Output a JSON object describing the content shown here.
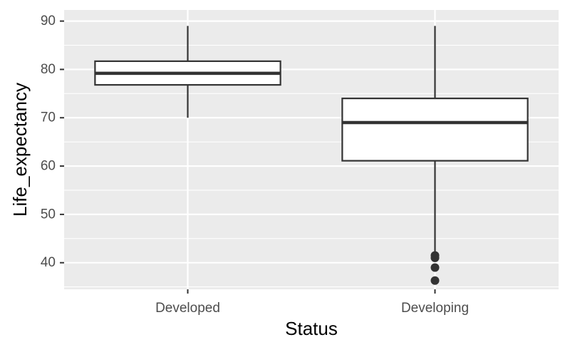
{
  "chart_data": {
    "type": "box",
    "xlabel": "Status",
    "ylabel": "Life_expectancy",
    "categories": [
      "Developed",
      "Developing"
    ],
    "ylim": [
      34.5,
      92.3
    ],
    "yticks": [
      40,
      50,
      60,
      70,
      80,
      90
    ],
    "grid": true,
    "boxes": [
      {
        "category": "Developed",
        "whisker_low": 70.0,
        "q1": 76.8,
        "median": 79.2,
        "q3": 81.7,
        "whisker_high": 89.0,
        "outliers": []
      },
      {
        "category": "Developing",
        "whisker_low": 42.0,
        "q1": 61.1,
        "median": 69.0,
        "q3": 74.0,
        "whisker_high": 89.0,
        "outliers": [
          41.5,
          41.0,
          39.0,
          36.3
        ]
      }
    ],
    "colors": {
      "panel": "#ebebeb",
      "grid": "#ffffff",
      "box_fill": "#ffffff",
      "box_stroke": "#333333"
    }
  }
}
